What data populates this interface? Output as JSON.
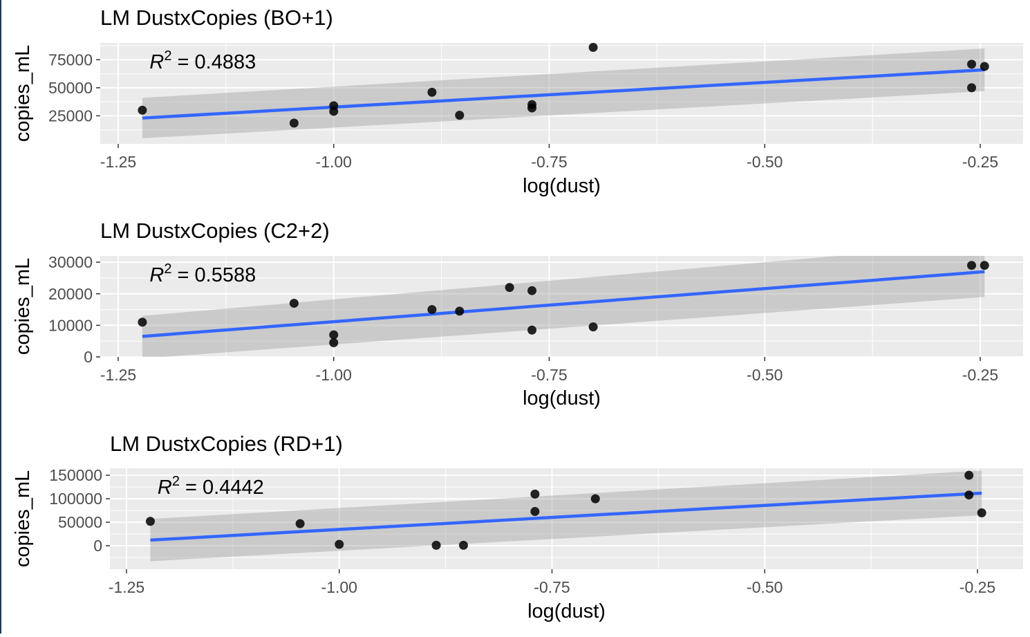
{
  "chart_data": [
    {
      "type": "scatter",
      "title": "LM DustxCopies (BO+1)",
      "xlabel": "log(dust)",
      "ylabel": "copies_mL",
      "xlim": [
        -1.25,
        -0.25
      ],
      "ylim": [
        0,
        90000
      ],
      "xticks": [
        -1.25,
        -1.0,
        -0.75,
        -0.5,
        -0.25
      ],
      "xtick_labels": [
        "-1.25",
        "-1.00",
        "-0.75",
        "-0.50",
        "-0.25"
      ],
      "yticks": [
        25000,
        50000,
        75000
      ],
      "ytick_labels": [
        "25000",
        "50000",
        "75000"
      ],
      "grid": true,
      "annotation": {
        "prefix": "R",
        "sup": "2",
        "text": " = 0.4883",
        "x": -1.22,
        "y": 70000
      },
      "points": [
        {
          "x": -1.222,
          "y": 30000
        },
        {
          "x": -1.046,
          "y": 18500
        },
        {
          "x": -1.0,
          "y": 34000
        },
        {
          "x": -1.0,
          "y": 29000
        },
        {
          "x": -0.886,
          "y": 46000
        },
        {
          "x": -0.854,
          "y": 25500
        },
        {
          "x": -0.77,
          "y": 35000
        },
        {
          "x": -0.77,
          "y": 32000
        },
        {
          "x": -0.699,
          "y": 86000
        },
        {
          "x": -0.26,
          "y": 71000
        },
        {
          "x": -0.26,
          "y": 50000
        },
        {
          "x": -0.245,
          "y": 69000
        }
      ],
      "fit_line": {
        "x": [
          -1.222,
          -0.245
        ],
        "y": [
          23000,
          66000
        ]
      },
      "confidence_band": {
        "x": [
          -1.222,
          -0.245
        ],
        "upper": [
          41000,
          85000
        ],
        "lower": [
          5000,
          47000
        ]
      },
      "colors": {
        "line": "#3366FF",
        "band": "#999999",
        "panel": "#EBEBEB"
      }
    },
    {
      "type": "scatter",
      "title": "LM DustxCopies (C2+2)",
      "xlabel": "log(dust)",
      "ylabel": "copies_mL",
      "xlim": [
        -1.25,
        -0.25
      ],
      "ylim": [
        0,
        32000
      ],
      "xticks": [
        -1.25,
        -1.0,
        -0.75,
        -0.5,
        -0.25
      ],
      "xtick_labels": [
        "-1.25",
        "-1.00",
        "-0.75",
        "-0.50",
        "-0.25"
      ],
      "yticks": [
        0,
        10000,
        20000,
        30000
      ],
      "ytick_labels": [
        "0",
        "10000",
        "20000",
        "30000"
      ],
      "grid": true,
      "annotation": {
        "prefix": "R",
        "sup": "2",
        "text": " = 0.5588",
        "x": -1.22,
        "y": 28000
      },
      "points": [
        {
          "x": -1.222,
          "y": 11000
        },
        {
          "x": -1.046,
          "y": 17000
        },
        {
          "x": -1.0,
          "y": 7000
        },
        {
          "x": -1.0,
          "y": 4500
        },
        {
          "x": -0.886,
          "y": 15000
        },
        {
          "x": -0.854,
          "y": 14500
        },
        {
          "x": -0.796,
          "y": 22000
        },
        {
          "x": -0.77,
          "y": 21000
        },
        {
          "x": -0.77,
          "y": 8500
        },
        {
          "x": -0.699,
          "y": 9500
        },
        {
          "x": -0.26,
          "y": 29000
        },
        {
          "x": -0.245,
          "y": 29000
        }
      ],
      "fit_line": {
        "x": [
          -1.222,
          -0.245
        ],
        "y": [
          6500,
          27000
        ]
      },
      "confidence_band": {
        "x": [
          -1.222,
          -0.245
        ],
        "upper": [
          13000,
          36000
        ],
        "lower": [
          -500,
          19000
        ]
      },
      "colors": {
        "line": "#3366FF",
        "band": "#999999",
        "panel": "#EBEBEB"
      }
    },
    {
      "type": "scatter",
      "title": "LM DustxCopies (RD+1)",
      "xlabel": "log(dust)",
      "ylabel": "copies_mL",
      "xlim": [
        -1.25,
        -0.25
      ],
      "ylim": [
        -50000,
        165000
      ],
      "xticks": [
        -1.25,
        -1.0,
        -0.75,
        -0.5,
        -0.25
      ],
      "xtick_labels": [
        "-1.25",
        "-1.00",
        "-0.75",
        "-0.50",
        "-0.25"
      ],
      "yticks": [
        0,
        50000,
        100000,
        150000
      ],
      "ytick_labels": [
        "0",
        "50000",
        "100000",
        "150000"
      ],
      "grid": true,
      "annotation": {
        "prefix": "R",
        "sup": "2",
        "text": " = 0.4442",
        "x": -1.22,
        "y": 120000
      },
      "points": [
        {
          "x": -1.222,
          "y": 52000
        },
        {
          "x": -1.046,
          "y": 47000
        },
        {
          "x": -1.0,
          "y": 3000
        },
        {
          "x": -0.886,
          "y": 1000
        },
        {
          "x": -0.854,
          "y": 1000
        },
        {
          "x": -0.77,
          "y": 110000
        },
        {
          "x": -0.77,
          "y": 73000
        },
        {
          "x": -0.699,
          "y": 100000
        },
        {
          "x": -0.26,
          "y": 150000
        },
        {
          "x": -0.26,
          "y": 108000
        },
        {
          "x": -0.245,
          "y": 70000
        }
      ],
      "fit_line": {
        "x": [
          -1.222,
          -0.245
        ],
        "y": [
          12000,
          112000
        ]
      },
      "confidence_band": {
        "x": [
          -1.222,
          -0.245
        ],
        "upper": [
          57000,
          160000
        ],
        "lower": [
          -33000,
          65000
        ]
      },
      "colors": {
        "line": "#3366FF",
        "band": "#999999",
        "panel": "#EBEBEB"
      }
    }
  ]
}
